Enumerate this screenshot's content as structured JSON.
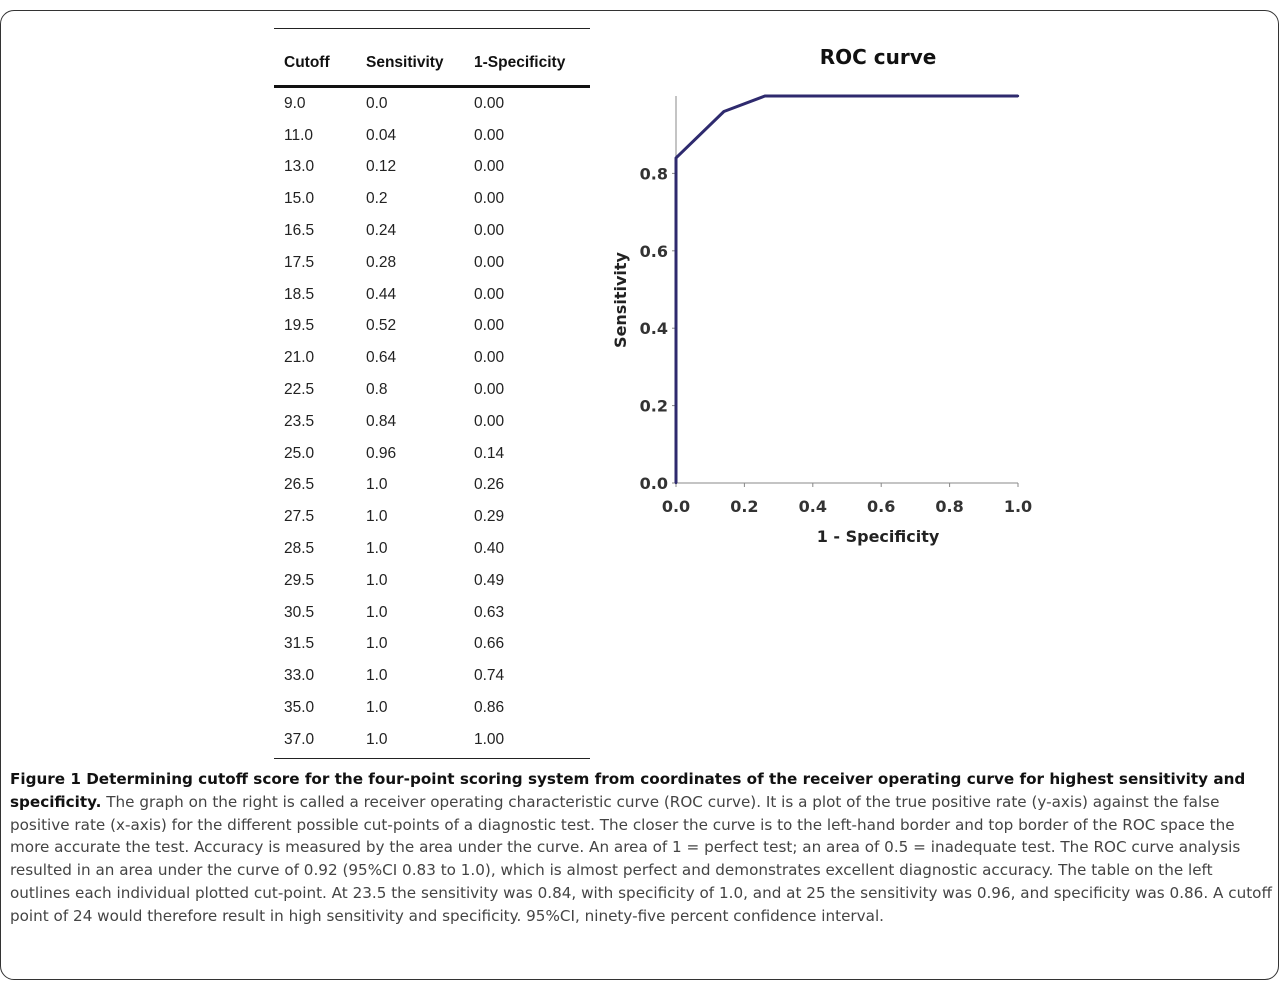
{
  "table": {
    "headers": [
      "Cutoff",
      "Sensitivity",
      "1-Specificity"
    ],
    "rows": [
      [
        "9.0",
        "0.0",
        "0.00"
      ],
      [
        "11.0",
        "0.04",
        "0.00"
      ],
      [
        "13.0",
        "0.12",
        "0.00"
      ],
      [
        "15.0",
        "0.2",
        "0.00"
      ],
      [
        "16.5",
        "0.24",
        "0.00"
      ],
      [
        "17.5",
        "0.28",
        "0.00"
      ],
      [
        "18.5",
        "0.44",
        "0.00"
      ],
      [
        "19.5",
        "0.52",
        "0.00"
      ],
      [
        "21.0",
        "0.64",
        "0.00"
      ],
      [
        "22.5",
        "0.8",
        "0.00"
      ],
      [
        "23.5",
        "0.84",
        "0.00"
      ],
      [
        "25.0",
        "0.96",
        "0.14"
      ],
      [
        "26.5",
        "1.0",
        "0.26"
      ],
      [
        "27.5",
        "1.0",
        "0.29"
      ],
      [
        "28.5",
        "1.0",
        "0.40"
      ],
      [
        "29.5",
        "1.0",
        "0.49"
      ],
      [
        "30.5",
        "1.0",
        "0.63"
      ],
      [
        "31.5",
        "1.0",
        "0.66"
      ],
      [
        "33.0",
        "1.0",
        "0.74"
      ],
      [
        "35.0",
        "1.0",
        "0.86"
      ],
      [
        "37.0",
        "1.0",
        "1.00"
      ]
    ]
  },
  "chart_data": {
    "type": "line",
    "title": "ROC curve",
    "xlabel": "1 - Specificity",
    "ylabel": "Sensitivity",
    "xlim": [
      0,
      1
    ],
    "ylim": [
      0,
      1
    ],
    "x_ticks": [
      "0.0",
      "0.2",
      "0.4",
      "0.6",
      "0.8",
      "1.0"
    ],
    "y_ticks": [
      "0.0",
      "0.2",
      "0.4",
      "0.6",
      "0.8"
    ],
    "grid": false,
    "line_color": "#2e2a6e",
    "series": [
      {
        "x": [
          0.0,
          0.0,
          0.0,
          0.0,
          0.0,
          0.0,
          0.0,
          0.0,
          0.0,
          0.0,
          0.0,
          0.14,
          0.26,
          0.29,
          0.4,
          0.49,
          0.63,
          0.66,
          0.74,
          0.86,
          1.0
        ],
        "y": [
          0.0,
          0.04,
          0.12,
          0.2,
          0.24,
          0.28,
          0.44,
          0.52,
          0.64,
          0.8,
          0.84,
          0.96,
          1.0,
          1.0,
          1.0,
          1.0,
          1.0,
          1.0,
          1.0,
          1.0,
          1.0
        ]
      }
    ]
  },
  "caption": {
    "lead": "Figure 1 Determining cutoff score for the four-point scoring system from coordinates of the receiver operating curve for highest sensitivity and specificity.",
    "body": " The graph on the right is called a receiver operating characteristic curve (ROC curve). It is a plot of the true positive rate (y-axis) against the false positive rate (x-axis) for the different possible cut-points of a diagnostic test. The closer the curve is to the left-hand border and top border of the ROC space the more accurate the test. Accuracy is measured by the area under the curve. An area of 1 = perfect test; an area of 0.5 = inadequate test. The ROC curve analysis resulted in an area under the curve of 0.92 (95%CI 0.83 to 1.0), which is almost perfect and demonstrates excellent diagnostic accuracy. The table on the left outlines each individual plotted cut-point. At 23.5 the sensitivity was 0.84, with specificity of 1.0, and at 25 the sensitivity was 0.96, and specificity was 0.86. A cutoff point of 24 would therefore result in high sensitivity and specificity. 95%CI, ninety-five percent confidence interval."
  }
}
